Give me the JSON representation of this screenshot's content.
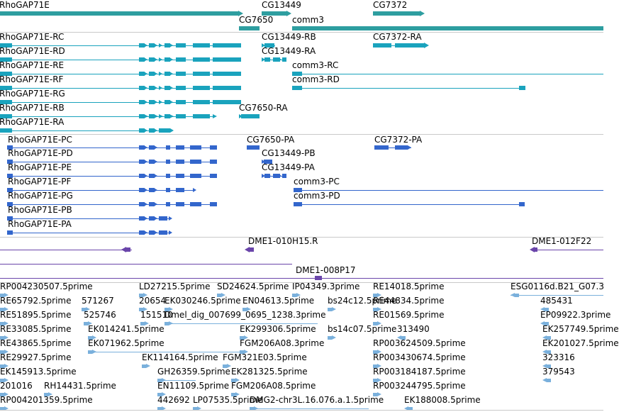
{
  "colors": {
    "gene": "#2e9ea0",
    "transcript": "#1aa3bd",
    "protein": "#3366cc",
    "clone": "#6a45aa",
    "est": "#7ab0dc",
    "separator": "#c9c9c9"
  },
  "tracks": {
    "genes": [
      "RhoGAP71E",
      "CG13449",
      "CG7372",
      "CG7650",
      "comm3"
    ],
    "transcripts": [
      "RhoGAP71E-RC",
      "CG13449-RB",
      "CG7372-RA",
      "RhoGAP71E-RD",
      "CG13449-RA",
      "RhoGAP71E-RE",
      "comm3-RC",
      "RhoGAP71E-RF",
      "comm3-RD",
      "RhoGAP71E-RG",
      "RhoGAP71E-RB",
      "CG7650-RA",
      "RhoGAP71E-RA"
    ],
    "proteins": [
      "RhoGAP71E-PC",
      "CG7650-PA",
      "CG7372-PA",
      "RhoGAP71E-PD",
      "CG13449-PB",
      "RhoGAP71E-PE",
      "CG13449-PA",
      "RhoGAP71E-PF",
      "comm3-PC",
      "RhoGAP71E-PG",
      "comm3-PD",
      "RhoGAP71E-PB",
      "RhoGAP71E-PA"
    ],
    "clones": [
      "DME1-010H15.R",
      "DME1-012F22",
      "DME1-008P17"
    ],
    "ests": [
      "RP004230507.5prime",
      "LD27215.5prime",
      "SD24624.5prime",
      "IP04349.3prime",
      "RE14018.5prime",
      "ESG0116d.B21_G07.3",
      "RE65792.5prime",
      "571267",
      "20654",
      "EK030246.5prime",
      "EN04613.5prime",
      "bs24c12.5prime",
      "RE44834.5prime",
      "485431",
      "RE51895.5prime",
      "525746",
      "151510",
      "Dmel_dig_007699_0695_1238.3prime",
      "RE01569.5prime",
      "EP09922.3prime",
      "RE33085.5prime",
      "EK014241.5prime",
      "EK299306.5prime",
      "bs14c07.5prime",
      "313490",
      "EK257749.5prime",
      "RE43865.5prime",
      "EK071962.5prime",
      "FGM206A08.3prime",
      "RP003624509.5prime",
      "EK201027.5prime",
      "RE29927.5prime",
      "EK114164.5prime",
      "FGM321E03.5prime",
      "RP003430674.5prime",
      "323316",
      "EK145913.5prime",
      "GH26359.5prime",
      "EK281325.5prime",
      "RP003184187.5prime",
      "379543",
      "201016",
      "RH14431.5prime",
      "EN11109.5prime",
      "FGM206A08.5prime",
      "RP003244795.5prime",
      "RP004201359.5prime",
      "442692",
      "LP07535.5prime",
      "DMG2-chr3L.16.076.a.1.5prime",
      "EK188008.5prime"
    ]
  }
}
